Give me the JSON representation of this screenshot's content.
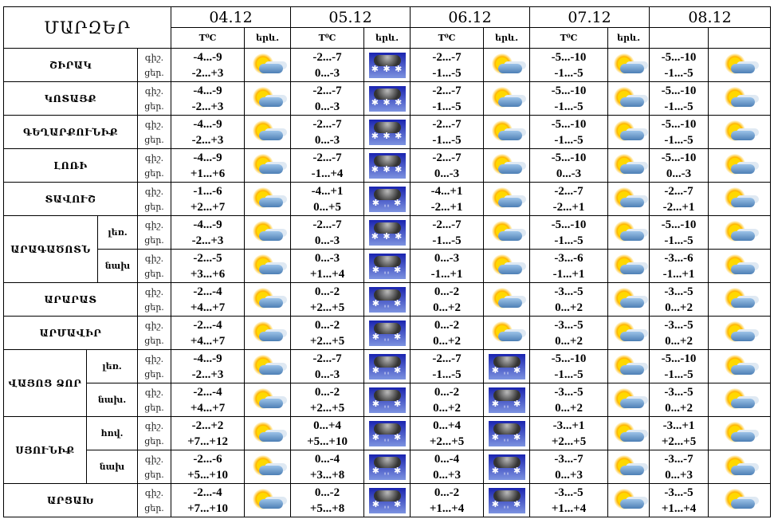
{
  "header": {
    "title": "ՄԱՐԶԵՐ",
    "dates": [
      "04.12",
      "05.12",
      "06.12",
      "07.12",
      "08.12"
    ],
    "temp_label": "T⁰C",
    "weather_label": "երև."
  },
  "icons": {
    "ps": "partly-sunny-icon",
    "snow": "snow-icon",
    "sleet": "sleet-icon"
  },
  "rows": [
    {
      "region": "ՇԻՐԱԿ",
      "night": "գիշ.",
      "day": "ցեր.",
      "days": [
        [
          "-4...-9",
          "-2...+3",
          "ps"
        ],
        [
          "-2...-7",
          "0...-3",
          "snow"
        ],
        [
          "-2...-7",
          "-1...-5",
          "ps"
        ],
        [
          "-5...-10",
          "-1...-5",
          "ps"
        ],
        [
          "-5...-10",
          "-1...-5",
          "ps"
        ]
      ]
    },
    {
      "region": "ԿՈՏԱՅՔ",
      "night": "գիշ.",
      "day": "ցեր.",
      "days": [
        [
          "-4...-9",
          "-2...+3",
          "ps"
        ],
        [
          "-2...-7",
          "0...-3",
          "snow"
        ],
        [
          "-2...-7",
          "-1...-5",
          "ps"
        ],
        [
          "-5...-10",
          "-1...-5",
          "ps"
        ],
        [
          "-5...-10",
          "-1...-5",
          "ps"
        ]
      ]
    },
    {
      "region": "ԳԵՂԱՐՔՈՒՆԻՔ",
      "night": "գիշ.",
      "day": "ցեր.",
      "days": [
        [
          "-4...-9",
          "-2...+3",
          "ps"
        ],
        [
          "-2...-7",
          "0...-3",
          "snow"
        ],
        [
          "-2...-7",
          "-1...-5",
          "ps"
        ],
        [
          "-5...-10",
          "-1...-5",
          "ps"
        ],
        [
          "-5...-10",
          "-1...-5",
          "ps"
        ]
      ]
    },
    {
      "region": "ԼՈՌԻ",
      "night": "գիշ.",
      "day": "ցեր.",
      "days": [
        [
          "-4...-9",
          "+1...+6",
          "ps"
        ],
        [
          "-2...-7",
          "-1...+4",
          "snow"
        ],
        [
          "-2...-7",
          "0...-3",
          "ps"
        ],
        [
          "-5...-10",
          "0...-3",
          "ps"
        ],
        [
          "-5...-10",
          "0...-3",
          "ps"
        ]
      ]
    },
    {
      "region": "ՏԱՎՈՒՇ",
      "night": "գիշ.",
      "day": "ցեր.",
      "days": [
        [
          "-1...-6",
          "+2...+7",
          "ps"
        ],
        [
          "-4...+1",
          "0...+5",
          "sleet"
        ],
        [
          "-4...+1",
          "-2...+1",
          "ps"
        ],
        [
          "-2...-7",
          "-2...+1",
          "ps"
        ],
        [
          "-2...-7",
          "-2...+1",
          "ps"
        ]
      ]
    },
    {
      "region": "ԱՐԱԳԱԾՈՏՆ",
      "sub": "լեռ.",
      "group": "start",
      "span": 2,
      "night": "գիշ.",
      "day": "ցեր.",
      "days": [
        [
          "-4...-9",
          "-2...+3",
          "ps"
        ],
        [
          "-2...-7",
          "0...-3",
          "snow"
        ],
        [
          "-2...-7",
          "-1...-5",
          "ps"
        ],
        [
          "-5...-10",
          "-1...-5",
          "ps"
        ],
        [
          "-5...-10",
          "-1...-5",
          "ps"
        ]
      ]
    },
    {
      "sub": "նախ",
      "group": "cont",
      "night": "գիշ.",
      "day": "ցեր.",
      "days": [
        [
          "-2...-5",
          "+3...+6",
          "ps"
        ],
        [
          "0...-3",
          "+1...+4",
          "sleet"
        ],
        [
          "0...-3",
          "-1...+1",
          "ps"
        ],
        [
          "-3...-6",
          "-1...+1",
          "ps"
        ],
        [
          "-3...-6",
          "-1...+1",
          "ps"
        ]
      ]
    },
    {
      "region": "ԱՐԱՐԱՏ",
      "night": "գիշ.",
      "day": "ցեր.",
      "days": [
        [
          "-2...-4",
          "+4...+7",
          "ps"
        ],
        [
          "0...-2",
          "+2...+5",
          "sleet"
        ],
        [
          "0...-2",
          "0...+2",
          "ps"
        ],
        [
          "-3...-5",
          "0...+2",
          "ps"
        ],
        [
          "-3...-5",
          "0...+2",
          "ps"
        ]
      ]
    },
    {
      "region": "ԱՐՄԱՎԻՐ",
      "night": "գիշ.",
      "day": "ցեր.",
      "days": [
        [
          "-2...-4",
          "+4...+7",
          "ps"
        ],
        [
          "0...-2",
          "+2...+5",
          "sleet"
        ],
        [
          "0...-2",
          "0...+2",
          "ps"
        ],
        [
          "-3...-5",
          "0...+2",
          "ps"
        ],
        [
          "-3...-5",
          "0...+2",
          "ps"
        ]
      ]
    },
    {
      "region": "ՎԱՅՈՑ ՁՈՐ",
      "sub": "լեռ.",
      "group": "start",
      "span": 1,
      "night": "գիշ.",
      "day": "ցեր.",
      "days": [
        [
          "-4...-9",
          "-2...+3",
          "ps"
        ],
        [
          "-2...-7",
          "0...-3",
          "sleet"
        ],
        [
          "-2...-7",
          "-1...-5",
          "sleet"
        ],
        [
          "-5...-10",
          "-1...-5",
          "ps"
        ],
        [
          "-5...-10",
          "-1...-5",
          "ps"
        ]
      ]
    },
    {
      "sub": "նախ.",
      "group": "cont",
      "night": "գիշ.",
      "day": "ցեր.",
      "days": [
        [
          "-2...-4",
          "+4...+7",
          "ps"
        ],
        [
          "0...-2",
          "+2...+5",
          "sleet"
        ],
        [
          "0...-2",
          "0...+2",
          "sleet"
        ],
        [
          "-3...-5",
          "0...+2",
          "ps"
        ],
        [
          "-3...-5",
          "0...+2",
          "ps"
        ]
      ]
    },
    {
      "region": "ՍՅՈՒՆԻՔ",
      "sub": "հով.",
      "group": "start",
      "span": 1,
      "night": "գիշ.",
      "day": "ցեր.",
      "days": [
        [
          "-2...+2",
          "+7...+12",
          "ps"
        ],
        [
          "0...+4",
          "+5...+10",
          "sleet"
        ],
        [
          "0...+4",
          "+2...+5",
          "sleet"
        ],
        [
          "-3...+1",
          "+2...+5",
          "ps"
        ],
        [
          "-3...+1",
          "+2...+5",
          "ps"
        ]
      ]
    },
    {
      "sub": "նախ",
      "group": "cont",
      "night": "գիշ.",
      "day": "ցեր.",
      "days": [
        [
          "-2...-6",
          "+5...+10",
          "ps"
        ],
        [
          "0...-4",
          "+3...+8",
          "sleet"
        ],
        [
          "0...-4",
          "0...+3",
          "sleet"
        ],
        [
          "-3...-7",
          "0...+3",
          "ps"
        ],
        [
          "-3...-7",
          "0...+3",
          "ps"
        ]
      ]
    },
    {
      "region": "ԱՐՑԱԽ",
      "night": "գիշ.",
      "day": "ցեր.",
      "days": [
        [
          "-2...-4",
          "+7...+10",
          "ps"
        ],
        [
          "0...-2",
          "+5...+8",
          "sleet"
        ],
        [
          "0...-2",
          "+1...+4",
          "sleet"
        ],
        [
          "-3...-5",
          "+1...+4",
          "ps"
        ],
        [
          "-3...-5",
          "+1...+4",
          "ps"
        ]
      ]
    }
  ]
}
